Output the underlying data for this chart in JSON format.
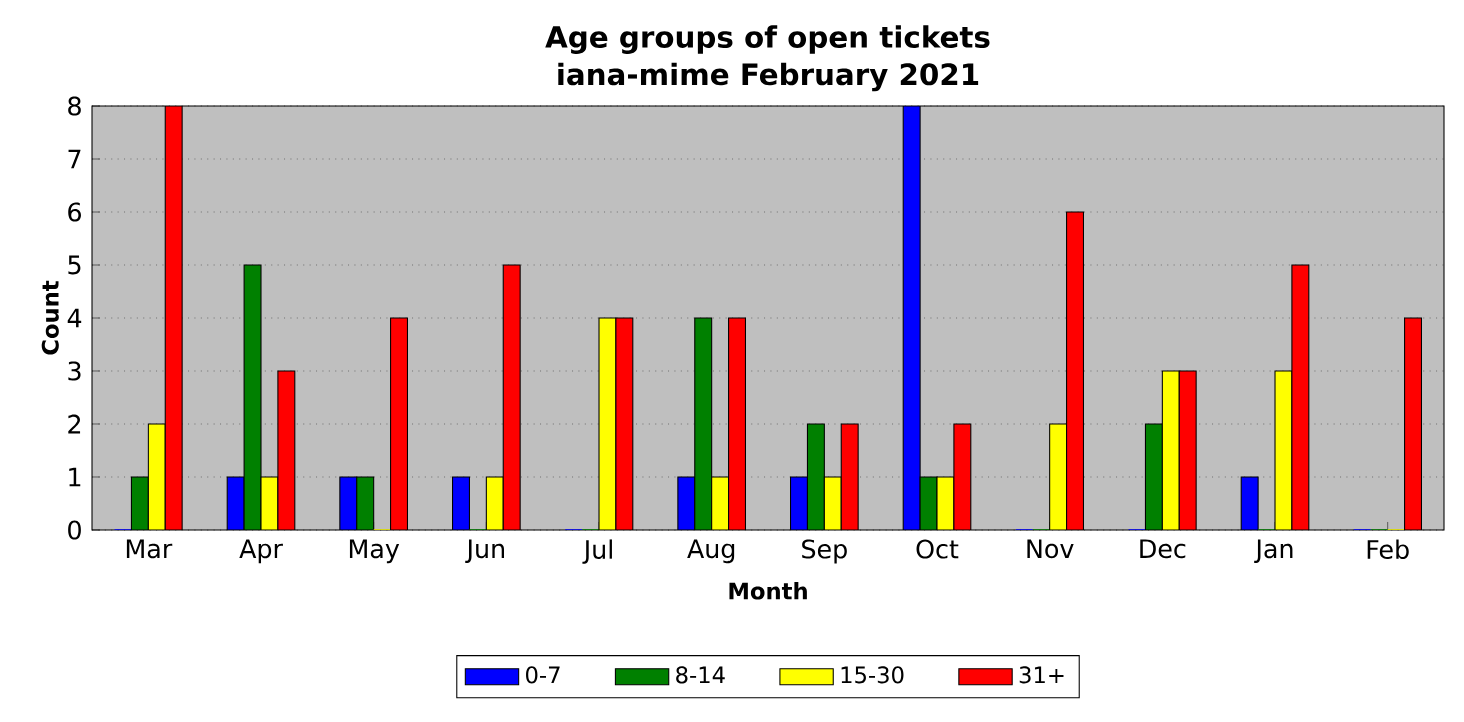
{
  "chart_data": {
    "type": "bar",
    "title": "Age groups of open tickets",
    "subtitle": "iana-mime February 2021",
    "xlabel": "Month",
    "ylabel": "Count",
    "categories": [
      "Mar",
      "Apr",
      "May",
      "Jun",
      "Jul",
      "Aug",
      "Sep",
      "Oct",
      "Nov",
      "Dec",
      "Jan",
      "Feb"
    ],
    "series": [
      {
        "name": "0-7",
        "color": "#0000ff",
        "values": [
          0,
          1,
          1,
          1,
          0,
          1,
          1,
          8,
          0,
          0,
          1,
          0
        ]
      },
      {
        "name": "8-14",
        "color": "#008000",
        "values": [
          1,
          5,
          1,
          0,
          0,
          4,
          2,
          1,
          0,
          2,
          0,
          0
        ]
      },
      {
        "name": "15-30",
        "color": "#ffff00",
        "values": [
          2,
          1,
          0,
          1,
          4,
          1,
          1,
          1,
          2,
          3,
          3,
          0
        ]
      },
      {
        "name": "31+",
        "color": "#ff0000",
        "values": [
          8,
          3,
          4,
          5,
          4,
          4,
          2,
          2,
          6,
          3,
          5,
          4
        ]
      }
    ],
    "ylim": [
      0,
      8
    ],
    "yticks": [
      0,
      1,
      2,
      3,
      4,
      5,
      6,
      7,
      8
    ],
    "grid": "y",
    "legend": "bottom"
  }
}
